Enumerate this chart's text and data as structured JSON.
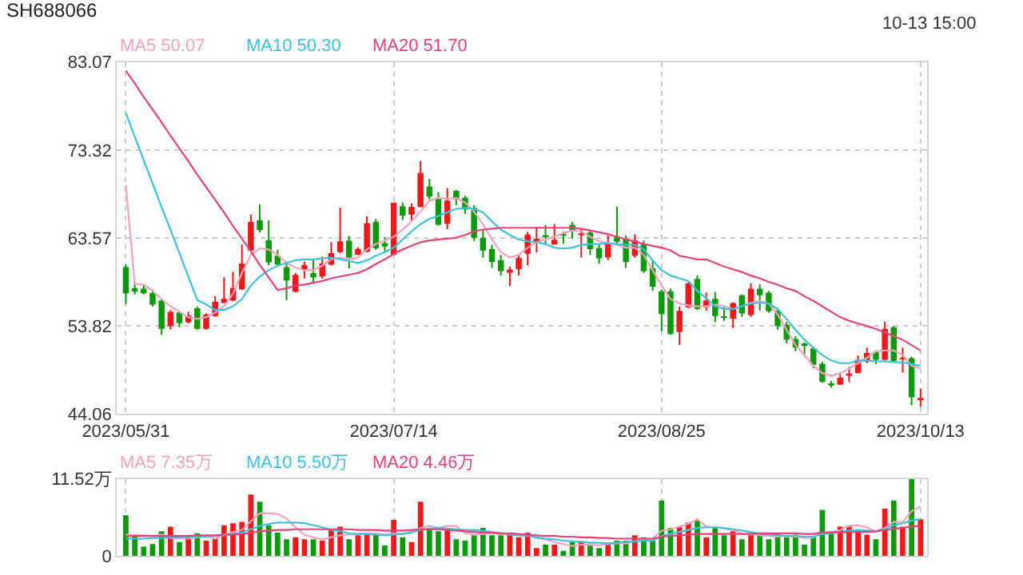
{
  "chart_data": [
    {
      "type": "candlestick",
      "title": "SH688066",
      "annotations": [
        "10-13 15:00"
      ],
      "legend": "top left",
      "grid": true,
      "ylim": [
        44.06,
        83.07
      ],
      "yticks": [
        44.06,
        53.82,
        63.57,
        73.32,
        83.07
      ],
      "categories": [
        "2023/05/31",
        null,
        null,
        null,
        null,
        null,
        null,
        null,
        null,
        null,
        null,
        null,
        null,
        null,
        null,
        null,
        null,
        null,
        null,
        null,
        null,
        null,
        null,
        null,
        null,
        null,
        null,
        null,
        null,
        null,
        "2023/07/14",
        null,
        null,
        null,
        null,
        null,
        null,
        null,
        null,
        null,
        null,
        null,
        null,
        null,
        null,
        null,
        null,
        null,
        null,
        null,
        null,
        null,
        null,
        null,
        null,
        null,
        null,
        null,
        null,
        null,
        "2023/08/25",
        null,
        null,
        null,
        null,
        null,
        null,
        null,
        null,
        null,
        null,
        null,
        null,
        null,
        null,
        null,
        null,
        null,
        null,
        null,
        null,
        null,
        null,
        null,
        null,
        null,
        null,
        null,
        null,
        "2023/10/13"
      ],
      "ohlc": [
        [
          60.26,
          60.66,
          56.27,
          57.53
        ],
        [
          57.92,
          58.67,
          57.3,
          57.7
        ],
        [
          57.87,
          58.38,
          57.3,
          57.53
        ],
        [
          57.4,
          57.87,
          55.98,
          56.27
        ],
        [
          56.55,
          56.84,
          52.85,
          53.59
        ],
        [
          53.88,
          55.59,
          53.42,
          55.3
        ],
        [
          55.24,
          55.41,
          53.7,
          54.22
        ],
        [
          54.33,
          55.41,
          54.1,
          54.9
        ],
        [
          55.7,
          55.98,
          53.42,
          53.59
        ],
        [
          53.59,
          55.24,
          53.42,
          55.0
        ],
        [
          55.0,
          57.13,
          54.84,
          56.4
        ],
        [
          56.44,
          59.24,
          56.44,
          56.73
        ],
        [
          56.73,
          59.81,
          56.55,
          57.92
        ],
        [
          57.98,
          62.83,
          57.81,
          60.66
        ],
        [
          62.26,
          66.19,
          62.26,
          65.28
        ],
        [
          65.45,
          67.28,
          64.2,
          64.54
        ],
        [
          63.23,
          65.51,
          60.55,
          60.95
        ],
        [
          61.52,
          62.26,
          60.55,
          60.72
        ],
        [
          60.26,
          60.95,
          56.67,
          58.95
        ],
        [
          57.7,
          59.69,
          57.53,
          59.4
        ],
        [
          60.2,
          60.95,
          59.07,
          60.5
        ],
        [
          59.58,
          61.12,
          58.67,
          59.3
        ],
        [
          59.4,
          61.52,
          59.07,
          60.66
        ],
        [
          60.7,
          63.11,
          60.55,
          61.8
        ],
        [
          62.1,
          66.93,
          61.92,
          63.1
        ],
        [
          63.2,
          63.8,
          60.21,
          61.5
        ],
        [
          61.8,
          62.54,
          61.69,
          62.26
        ],
        [
          62.14,
          65.97,
          61.97,
          65.11
        ],
        [
          65.28,
          65.68,
          62.26,
          62.54
        ],
        [
          62.9,
          63.68,
          62.09,
          62.7
        ],
        [
          61.8,
          67.5,
          61.69,
          67.39
        ],
        [
          66.99,
          67.5,
          65.57,
          66.14
        ],
        [
          66.25,
          67.39,
          65.51,
          66.93
        ],
        [
          67.1,
          72.12,
          66.99,
          70.7
        ],
        [
          69.2,
          70.13,
          67.85,
          68.25
        ],
        [
          67.96,
          68.65,
          64.94,
          65.11
        ],
        [
          65.22,
          69.1,
          64.54,
          67.62
        ],
        [
          68.7,
          68.93,
          67.22,
          67.96
        ],
        [
          67.96,
          68.25,
          66.25,
          66.82
        ],
        [
          66.82,
          67.22,
          63.23,
          63.69
        ],
        [
          63.51,
          64.54,
          61.4,
          62.26
        ],
        [
          62.26,
          62.83,
          60.26,
          61.0
        ],
        [
          61.0,
          61.69,
          59.41,
          59.98
        ],
        [
          59.8,
          60.38,
          58.27,
          59.98
        ],
        [
          60.2,
          61.69,
          59.41,
          61.3
        ],
        [
          61.92,
          64.25,
          60.55,
          63.86
        ],
        [
          63.2,
          64.82,
          61.97,
          63.4
        ],
        [
          63.8,
          64.99,
          62.83,
          63.75
        ],
        [
          62.94,
          65.11,
          62.83,
          63.29
        ],
        [
          63.95,
          64.25,
          62.94,
          63.9
        ],
        [
          64.94,
          65.34,
          63.51,
          64.54
        ],
        [
          63.97,
          64.54,
          61.4,
          64.0
        ],
        [
          64.08,
          64.43,
          61.69,
          62.43
        ],
        [
          62.37,
          62.83,
          60.72,
          61.4
        ],
        [
          61.52,
          63.86,
          61.12,
          62.94
        ],
        [
          63.69,
          67.05,
          62.83,
          63.23
        ],
        [
          63.4,
          63.86,
          60.26,
          61.0
        ],
        [
          61.7,
          63.97,
          61.4,
          63.23
        ],
        [
          62.83,
          63.28,
          59.69,
          59.98
        ],
        [
          60.15,
          61.12,
          57.7,
          58.27
        ],
        [
          57.58,
          57.87,
          53.25,
          55.24
        ],
        [
          57.58,
          57.98,
          52.85,
          53.02
        ],
        [
          53.25,
          55.98,
          51.71,
          55.41
        ],
        [
          55.98,
          58.67,
          55.81,
          58.44
        ],
        [
          58.95,
          59.41,
          55.59,
          55.81
        ],
        [
          55.98,
          57.53,
          55.53,
          56.55
        ],
        [
          56.73,
          57.58,
          54.27,
          55.0
        ],
        [
          54.8,
          56.1,
          54.39,
          54.78
        ],
        [
          54.73,
          56.44,
          53.59,
          56.27
        ],
        [
          57.13,
          57.3,
          54.84,
          55.3
        ],
        [
          55.13,
          58.55,
          54.84,
          57.87
        ],
        [
          57.87,
          58.44,
          55.53,
          57.3
        ],
        [
          57.41,
          57.7,
          55.3,
          55.53
        ],
        [
          55.41,
          55.59,
          53.42,
          53.88
        ],
        [
          53.88,
          54.27,
          51.88,
          52.39
        ],
        [
          52.28,
          52.68,
          51.02,
          51.54
        ],
        [
          51.8,
          51.99,
          50.45,
          51.71
        ],
        [
          51.25,
          51.54,
          49.14,
          49.6
        ],
        [
          49.54,
          49.83,
          47.54,
          47.72
        ],
        [
          47.38,
          47.72,
          46.97,
          47.32
        ],
        [
          47.43,
          48.57,
          47.26,
          48.0
        ],
        [
          48.4,
          49.31,
          47.6,
          48.46
        ],
        [
          48.68,
          50.57,
          48.57,
          49.99
        ],
        [
          49.99,
          51.42,
          49.71,
          50.74
        ],
        [
          50.85,
          51.14,
          49.6,
          50.17
        ],
        [
          50.17,
          54.27,
          50.0,
          53.42
        ],
        [
          53.59,
          53.82,
          49.88,
          50.0
        ],
        [
          50.2,
          51.42,
          48.68,
          50.23
        ],
        [
          50.17,
          50.4,
          45.04,
          46.0
        ],
        [
          45.7,
          46.86,
          44.86,
          45.75
        ]
      ],
      "series": [
        {
          "type": "line",
          "name": "MA5 50.07",
          "color": "#f7a1bd",
          "values": [
            69.4,
            58.5,
            58.4,
            57.7,
            56.8,
            56.0,
            55.4,
            54.8,
            54.6,
            54.8,
            55.3,
            56.0,
            57.4,
            59.7,
            61.7,
            62.4,
            62.3,
            61.7,
            60.8,
            60.3,
            60.0,
            60.0,
            60.5,
            61.2,
            61.4,
            61.2,
            61.4,
            62.3,
            62.9,
            63.3,
            63.7,
            64.5,
            65.4,
            66.5,
            67.7,
            68.0,
            67.9,
            68.0,
            67.5,
            66.5,
            65.1,
            63.4,
            62.0,
            61.4,
            61.7,
            62.5,
            63.1,
            63.4,
            63.7,
            64.1,
            64.4,
            64.3,
            63.7,
            63.2,
            63.0,
            62.8,
            62.5,
            62.5,
            61.7,
            60.0,
            58.3,
            56.8,
            56.3,
            56.1,
            56.0,
            56.0,
            56.2,
            56.0,
            55.7,
            56.0,
            56.4,
            56.6,
            56.3,
            55.1,
            53.4,
            51.7,
            50.6,
            49.4,
            48.6,
            48.3,
            48.6,
            49.1,
            49.7,
            50.3,
            51.0,
            51.1,
            51.1,
            50.6,
            49.4,
            49.1
          ]
        },
        {
          "type": "line",
          "name": "MA10 50.30",
          "color": "#3cc2df",
          "values": [
            77.4,
            74.8,
            72.2,
            69.6,
            67.0,
            64.5,
            61.9,
            59.3,
            56.7,
            56.2,
            55.6,
            55.6,
            56.0,
            56.8,
            58.3,
            59.3,
            60.0,
            60.5,
            60.8,
            61.1,
            61.2,
            61.2,
            61.3,
            61.4,
            61.2,
            61.0,
            60.8,
            61.1,
            61.6,
            62.0,
            62.5,
            63.4,
            64.3,
            65.1,
            65.7,
            66.0,
            66.4,
            66.8,
            66.9,
            66.8,
            66.4,
            65.4,
            64.5,
            63.9,
            63.4,
            63.2,
            63.1,
            62.9,
            62.5,
            62.4,
            62.5,
            62.8,
            62.9,
            62.9,
            63.0,
            62.9,
            62.8,
            62.8,
            62.3,
            61.1,
            60.0,
            59.4,
            59.1,
            58.8,
            57.7,
            56.9,
            56.0,
            55.7,
            55.7,
            56.0,
            56.3,
            56.4,
            56.3,
            55.7,
            54.6,
            53.4,
            52.3,
            51.4,
            50.6,
            50.0,
            49.7,
            49.7,
            50.0,
            50.0,
            49.9,
            49.9,
            49.8,
            49.8,
            49.6,
            49.4
          ]
        },
        {
          "type": "line",
          "name": "MA20 51.70",
          "color": "#e8407a",
          "values": [
            82.1,
            80.7,
            79.2,
            77.8,
            76.4,
            74.9,
            73.5,
            72.1,
            70.6,
            69.2,
            67.8,
            66.4,
            64.9,
            63.5,
            62.1,
            60.6,
            59.2,
            57.8,
            58.0,
            58.3,
            58.4,
            58.6,
            58.8,
            59.1,
            59.3,
            59.5,
            59.7,
            60.1,
            60.7,
            61.2,
            61.8,
            62.3,
            62.7,
            63.1,
            63.3,
            63.4,
            63.5,
            63.6,
            63.9,
            64.3,
            64.5,
            64.6,
            64.7,
            64.7,
            64.7,
            64.7,
            64.7,
            64.7,
            64.7,
            64.7,
            64.7,
            64.6,
            64.4,
            64.2,
            64.0,
            63.7,
            63.4,
            63.2,
            62.9,
            62.7,
            62.5,
            62.2,
            61.6,
            61.4,
            61.2,
            61.2,
            60.8,
            60.4,
            60.1,
            59.8,
            59.4,
            59.1,
            58.7,
            58.4,
            58.0,
            57.7,
            57.1,
            56.6,
            56.0,
            55.4,
            54.8,
            54.4,
            54.1,
            53.8,
            53.5,
            53.1,
            52.7,
            52.3,
            51.7,
            51.1
          ]
        }
      ]
    },
    {
      "type": "bar",
      "legend": "top left",
      "grid": true,
      "tick_labels": "y",
      "ylim": [
        0,
        11.52
      ],
      "yticks": [
        0,
        {
          "value": 11.52,
          "label": "11.52万"
        }
      ],
      "categories": [
        "2023/05/31",
        null,
        null,
        null,
        null,
        null,
        null,
        null,
        null,
        null,
        null,
        null,
        null,
        null,
        null,
        null,
        null,
        null,
        null,
        null,
        null,
        null,
        null,
        null,
        null,
        null,
        null,
        null,
        null,
        null,
        "2023/07/14",
        null,
        null,
        null,
        null,
        null,
        null,
        null,
        null,
        null,
        null,
        null,
        null,
        null,
        null,
        null,
        null,
        null,
        null,
        null,
        null,
        null,
        null,
        null,
        null,
        null,
        null,
        null,
        null,
        null,
        "2023/08/25",
        null,
        null,
        null,
        null,
        null,
        null,
        null,
        null,
        null,
        null,
        null,
        null,
        null,
        null,
        null,
        null,
        null,
        null,
        null,
        null,
        null,
        null,
        null,
        null,
        null,
        null,
        null,
        null,
        "2023/10/13"
      ],
      "series": [
        {
          "type": "bar",
          "values": [
            6.1,
            3.2,
            1.4,
            1.8,
            3.7,
            4.4,
            2.1,
            2.8,
            3.4,
            2.3,
            2.7,
            4.6,
            4.9,
            5.1,
            9.2,
            8.1,
            4.6,
            3.5,
            2.5,
            2.8,
            2.5,
            2.5,
            2.3,
            4.1,
            4.4,
            2.5,
            3.1,
            3.5,
            3.3,
            1.6,
            5.4,
            2.8,
            2.1,
            8.1,
            4.2,
            3.7,
            4.2,
            2.5,
            2.3,
            3.1,
            4.2,
            3.1,
            3.1,
            3.3,
            2.8,
            3.5,
            1.2,
            1.7,
            1.7,
            0.8,
            2.1,
            2.2,
            1.7,
            1.2,
            1.7,
            2.3,
            2.3,
            3.1,
            2.8,
            2.3,
            8.3,
            4.2,
            4.4,
            5.0,
            5.4,
            2.8,
            4.4,
            3.1,
            3.7,
            2.5,
            3.1,
            3.3,
            2.5,
            3.3,
            2.8,
            3.2,
            1.7,
            2.8,
            6.9,
            3.7,
            4.4,
            4.5,
            3.8,
            3.2,
            2.5,
            7.1,
            8.3,
            4.4,
            11.5,
            5.5
          ],
          "colors": [
            "#0a9a0a",
            "#0a9a0a",
            "#0a9a0a",
            "#0a9a0a",
            "#0a9a0a",
            "#f01818",
            "#0a9a0a",
            "#f01818",
            "#0a9a0a",
            "#f01818",
            "#f01818",
            "#f01818",
            "#f01818",
            "#f01818",
            "#f01818",
            "#0a9a0a",
            "#0a9a0a",
            "#0a9a0a",
            "#0a9a0a",
            "#f01818",
            "#f01818",
            "#0a9a0a",
            "#f01818",
            "#f01818",
            "#f01818",
            "#0a9a0a",
            "#f01818",
            "#f01818",
            "#0a9a0a",
            "#0a9a0a",
            "#f01818",
            "#0a9a0a",
            "#f01818",
            "#f01818",
            "#0a9a0a",
            "#0a9a0a",
            "#f01818",
            "#0a9a0a",
            "#0a9a0a",
            "#0a9a0a",
            "#0a9a0a",
            "#0a9a0a",
            "#0a9a0a",
            "#f01818",
            "#f01818",
            "#f01818",
            "#f01818",
            "#0a9a0a",
            "#f01818",
            "#0a9a0a",
            "#0a9a0a",
            "#f01818",
            "#0a9a0a",
            "#0a9a0a",
            "#f01818",
            "#0a9a0a",
            "#0a9a0a",
            "#f01818",
            "#0a9a0a",
            "#0a9a0a",
            "#0a9a0a",
            "#0a9a0a",
            "#f01818",
            "#f01818",
            "#0a9a0a",
            "#f01818",
            "#0a9a0a",
            "#0a9a0a",
            "#f01818",
            "#0a9a0a",
            "#f01818",
            "#0a9a0a",
            "#0a9a0a",
            "#0a9a0a",
            "#0a9a0a",
            "#0a9a0a",
            "#0a9a0a",
            "#0a9a0a",
            "#0a9a0a",
            "#0a9a0a",
            "#f01818",
            "#f01818",
            "#f01818",
            "#f01818",
            "#0a9a0a",
            "#f01818",
            "#0a9a0a",
            "#f01818",
            "#0a9a0a",
            "#f01818"
          ]
        },
        {
          "type": "line",
          "name": "MA5 7.35万",
          "color": "#f7a1bd",
          "values": [
            3.2,
            3.2,
            3.1,
            3.0,
            3.2,
            2.7,
            2.7,
            2.6,
            2.8,
            3.0,
            2.6,
            3.2,
            3.6,
            3.9,
            5.2,
            6.4,
            6.4,
            6.3,
            5.6,
            4.3,
            3.2,
            2.8,
            2.5,
            2.8,
            3.1,
            3.2,
            3.3,
            3.4,
            3.4,
            3.2,
            3.4,
            3.3,
            3.4,
            4.2,
            4.5,
            4.2,
            4.5,
            4.5,
            3.4,
            3.2,
            3.3,
            3.4,
            3.3,
            3.3,
            3.2,
            3.2,
            2.7,
            2.5,
            2.1,
            1.8,
            1.5,
            1.7,
            1.7,
            1.6,
            1.8,
            1.9,
            1.9,
            2.2,
            2.5,
            2.6,
            3.8,
            4.0,
            4.4,
            4.8,
            5.5,
            4.4,
            4.3,
            4.1,
            3.9,
            3.3,
            3.4,
            3.1,
            3.0,
            2.9,
            3.0,
            2.9,
            2.7,
            2.8,
            3.4,
            3.6,
            3.9,
            4.5,
            4.6,
            4.3,
            3.7,
            4.2,
            5.1,
            5.1,
            6.7,
            7.4
          ]
        },
        {
          "type": "line",
          "name": "MA10 5.50万",
          "color": "#3cc2df",
          "values": [
            2.6,
            2.6,
            2.6,
            2.7,
            2.7,
            2.8,
            2.8,
            2.9,
            2.9,
            2.9,
            3.0,
            3.1,
            3.3,
            3.5,
            4.0,
            4.5,
            4.8,
            5.0,
            5.0,
            5.0,
            4.9,
            4.6,
            4.3,
            3.9,
            3.7,
            3.4,
            3.3,
            3.3,
            3.2,
            3.1,
            3.2,
            3.3,
            3.6,
            3.9,
            4.1,
            4.2,
            4.1,
            4.0,
            3.9,
            3.9,
            3.8,
            3.6,
            3.4,
            3.2,
            3.1,
            3.0,
            2.8,
            2.6,
            2.5,
            2.3,
            2.2,
            2.1,
            2.0,
            2.0,
            1.9,
            2.0,
            2.1,
            2.2,
            2.3,
            2.3,
            3.0,
            3.3,
            3.6,
            3.9,
            4.2,
            4.3,
            4.3,
            4.2,
            4.0,
            3.8,
            3.6,
            3.3,
            3.2,
            3.1,
            3.0,
            3.0,
            2.9,
            2.9,
            3.3,
            3.4,
            3.6,
            3.8,
            3.9,
            3.8,
            3.7,
            4.1,
            4.6,
            4.9,
            5.3,
            5.5
          ]
        },
        {
          "type": "line",
          "name": "MA20 4.46万",
          "color": "#e8407a",
          "values": [
            3.0,
            3.0,
            3.0,
            3.0,
            3.0,
            3.0,
            3.0,
            3.0,
            3.1,
            3.1,
            3.1,
            3.2,
            3.2,
            3.3,
            3.5,
            3.7,
            3.8,
            3.9,
            3.9,
            4.0,
            4.0,
            4.0,
            4.0,
            4.0,
            4.0,
            4.0,
            3.9,
            3.9,
            3.9,
            3.8,
            3.8,
            3.8,
            3.9,
            4.0,
            4.0,
            4.0,
            3.9,
            3.8,
            3.7,
            3.6,
            3.5,
            3.5,
            3.4,
            3.4,
            3.3,
            3.2,
            3.1,
            3.0,
            3.0,
            2.9,
            2.9,
            2.8,
            2.8,
            2.7,
            2.7,
            2.6,
            2.6,
            2.6,
            2.6,
            2.6,
            2.9,
            3.0,
            3.1,
            3.2,
            3.3,
            3.3,
            3.3,
            3.3,
            3.3,
            3.3,
            3.3,
            3.4,
            3.4,
            3.4,
            3.4,
            3.4,
            3.3,
            3.3,
            3.5,
            3.5,
            3.6,
            3.6,
            3.6,
            3.6,
            3.7,
            3.9,
            4.1,
            4.2,
            4.4,
            4.5
          ]
        }
      ]
    }
  ]
}
